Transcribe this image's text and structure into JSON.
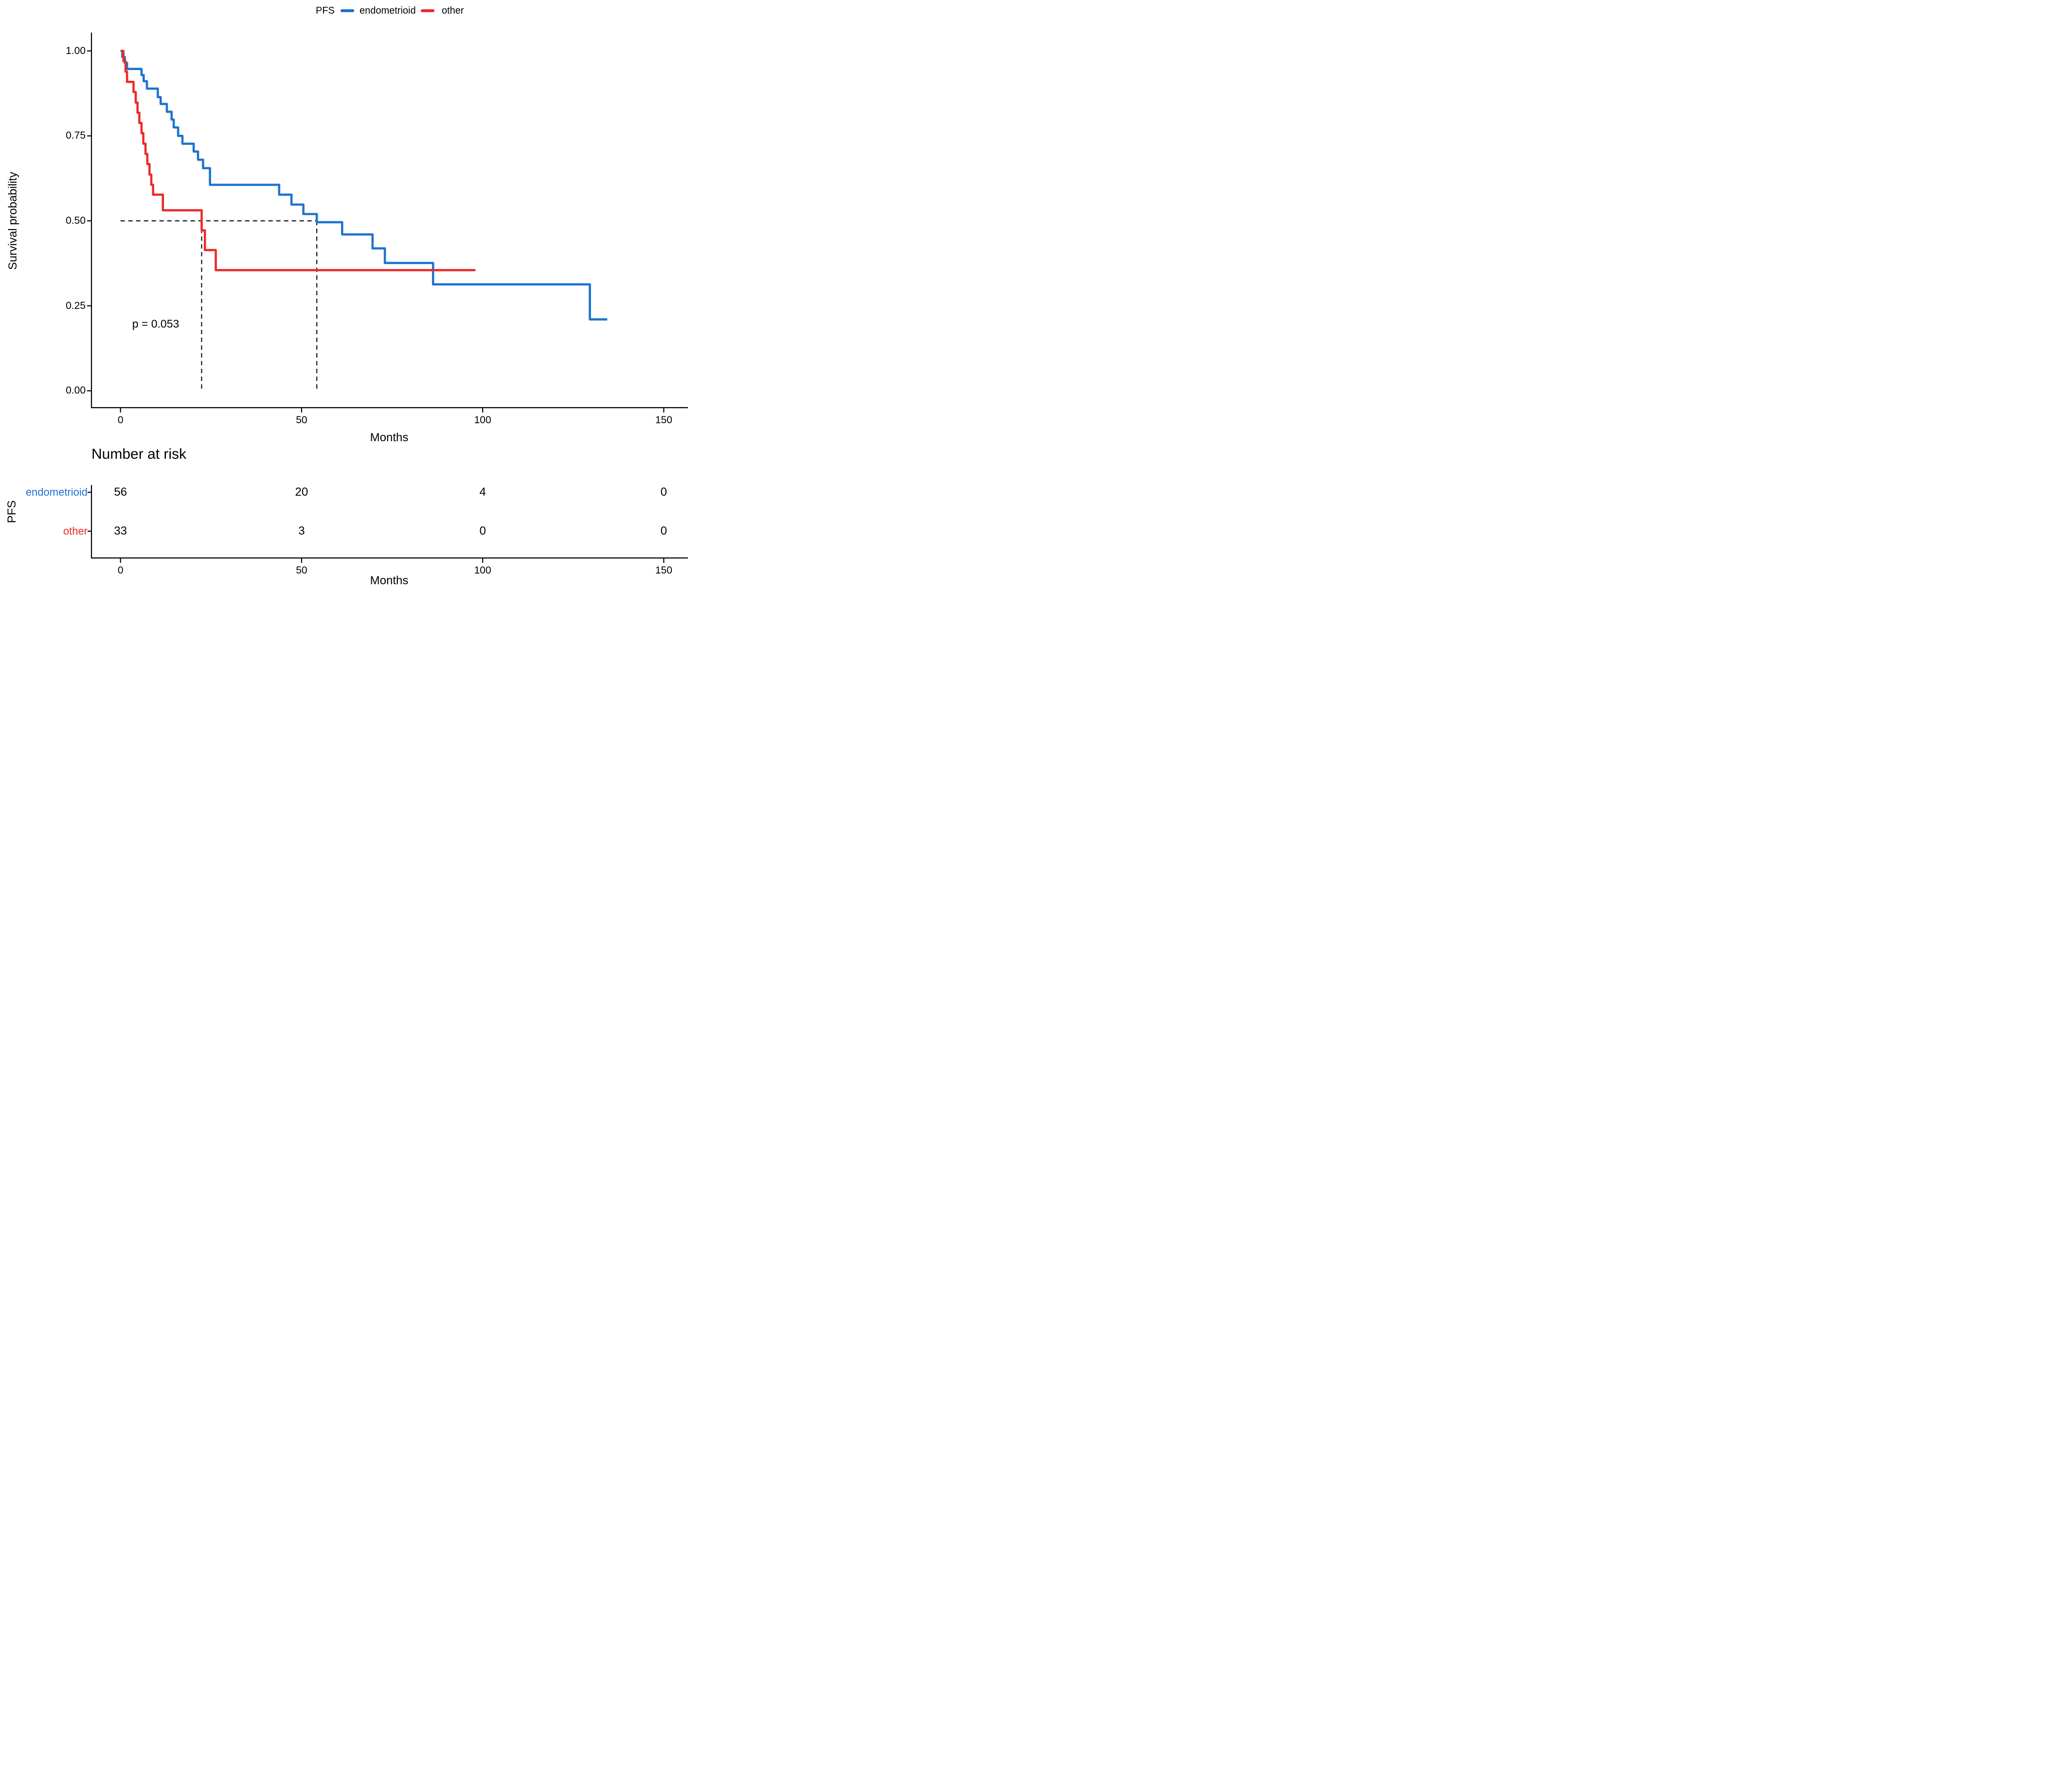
{
  "page": {
    "background": "#FFFFFF"
  },
  "colors": {
    "endometrioid": "#1F73CD",
    "other": "#EC2B2B",
    "axis": "#000000",
    "dashed": "#111111"
  },
  "legend": {
    "title": "PFS",
    "items": [
      {
        "label": "endometrioid",
        "color": "#1F73CD"
      },
      {
        "label": "other",
        "color": "#EC2B2B"
      }
    ]
  },
  "chart_data": {
    "type": "line",
    "subtype": "kaplan-meier-step",
    "title": "",
    "xlabel": "Months",
    "ylabel": "Survival probability",
    "xlim": [
      0,
      150
    ],
    "ylim": [
      0,
      1
    ],
    "grid": false,
    "legend_position": "top",
    "x_ticks": [
      "0",
      "50",
      "100",
      "150"
    ],
    "x_tick_values": [
      0,
      50,
      100,
      150
    ],
    "y_ticks": [
      "1.00",
      "0.75",
      "0.50",
      "0.25",
      "0.00"
    ],
    "y_tick_values": [
      1,
      0.75,
      0.5,
      0.25,
      0
    ],
    "annotation": {
      "text": "p = 0.053",
      "x": 10,
      "y": 0.2
    },
    "median_lines": {
      "probability": 0.5,
      "times": [
        22.4,
        54.2
      ]
    },
    "series": [
      {
        "name": "endometrioid",
        "color": "#1F73CD",
        "x": [
          0,
          0.5,
          1.2,
          1.8,
          5.8,
          6.4,
          7.3,
          10.3,
          11.1,
          12.8,
          14.1,
          14.7,
          15.9,
          17.1,
          20.2,
          21.4,
          22.8,
          24.7,
          43.8,
          47.2,
          50.5,
          54.2,
          61.2,
          69.6,
          73.0,
          86.3,
          129.6
        ],
        "y": [
          1.0,
          0.982,
          0.965,
          0.947,
          0.929,
          0.911,
          0.889,
          0.864,
          0.844,
          0.821,
          0.798,
          0.775,
          0.75,
          0.727,
          0.704,
          0.68,
          0.655,
          0.606,
          0.577,
          0.548,
          0.52,
          0.496,
          0.46,
          0.419,
          0.376,
          0.313,
          0.21
        ],
        "end_time": 134.4
      },
      {
        "name": "other",
        "color": "#EC2B2B",
        "x": [
          0,
          0.8,
          1.4,
          1.8,
          3.6,
          4.2,
          4.7,
          5.2,
          5.8,
          6.3,
          6.9,
          7.4,
          8.0,
          8.5,
          9.0,
          11.7,
          22.4,
          23.3,
          26.3
        ],
        "y": [
          1.0,
          0.97,
          0.939,
          0.909,
          0.879,
          0.848,
          0.818,
          0.788,
          0.758,
          0.727,
          0.697,
          0.667,
          0.636,
          0.606,
          0.577,
          0.531,
          0.472,
          0.414,
          0.355
        ],
        "end_time": 98
      }
    ]
  },
  "risk_table": {
    "title": "Number at risk",
    "group_axis_label": "PFS",
    "xlabel": "Months",
    "x_ticks": [
      "0",
      "50",
      "100",
      "150"
    ],
    "x_tick_values": [
      0,
      50,
      100,
      150
    ],
    "rows": [
      {
        "label": "endometrioid",
        "color": "#1F73CD",
        "values": [
          "56",
          "20",
          "4",
          "0"
        ]
      },
      {
        "label": "other",
        "color": "#EC2B2B",
        "values": [
          "33",
          "3",
          "0",
          "0"
        ]
      }
    ]
  }
}
